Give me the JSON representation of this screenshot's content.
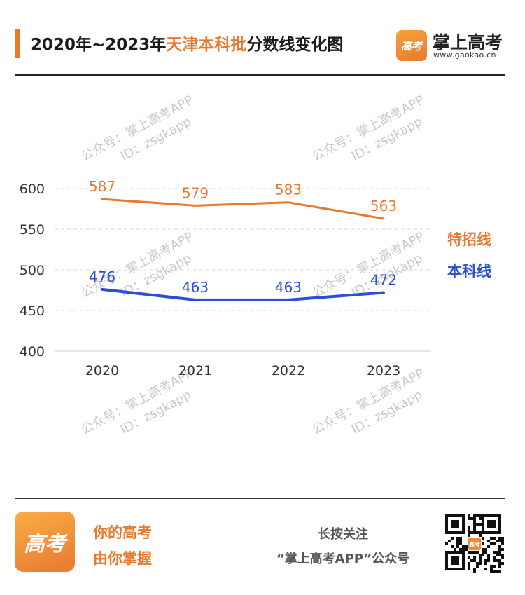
{
  "header": {
    "title_prefix": "2020年~2023年",
    "title_highlight": "天津本科批",
    "title_suffix": "分数线变化图",
    "brand_badge": "高考",
    "brand_name": "掌上高考",
    "brand_url": "www.gaokao.cn"
  },
  "watermark": {
    "line1": "公众号：掌上高考APP",
    "line2": "ID：zsgkapp"
  },
  "chart_data": {
    "type": "line",
    "title": "2020年~2023年天津本科批分数线变化图",
    "x": [
      "2020",
      "2021",
      "2022",
      "2023"
    ],
    "ylim": [
      400,
      600
    ],
    "yticks": [
      400,
      450,
      500,
      550,
      600
    ],
    "grid": true,
    "legend_position": "right",
    "series": [
      {
        "name": "特招线",
        "color": "#e8792f",
        "values": [
          587,
          579,
          583,
          563
        ]
      },
      {
        "name": "本科线",
        "color": "#2a4fd6",
        "values": [
          476,
          463,
          463,
          472
        ]
      }
    ]
  },
  "footer": {
    "badge": "高考",
    "slogan1": "你的高考",
    "slogan2": "由你掌握",
    "follow1": "长按关注",
    "follow2": "“掌上高考APP”公众号",
    "qr_badge": "高考"
  }
}
